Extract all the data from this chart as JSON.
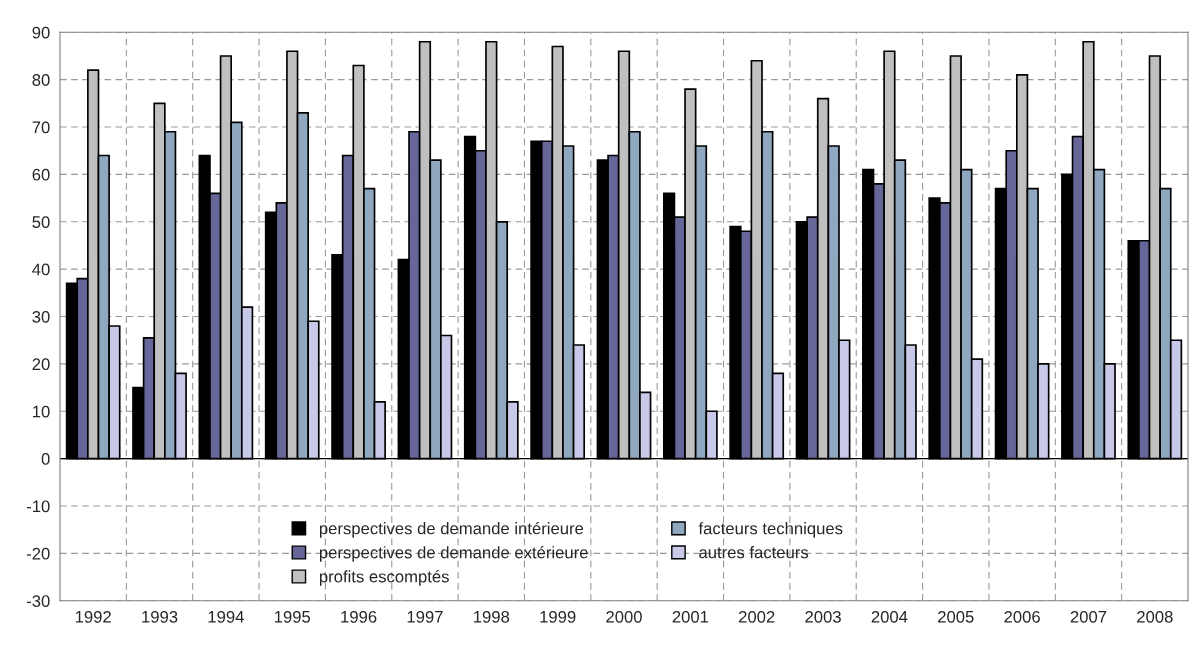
{
  "chart_data": {
    "type": "bar",
    "categories": [
      "1992",
      "1993",
      "1994",
      "1995",
      "1996",
      "1997",
      "1998",
      "1999",
      "2000",
      "2001",
      "2002",
      "2003",
      "2004",
      "2005",
      "2006",
      "2007",
      "2008"
    ],
    "series": [
      {
        "name": "perspectives de demande intérieure",
        "color": "#000000",
        "values": [
          37,
          15,
          64,
          52,
          43,
          42,
          68,
          67,
          63,
          56,
          49,
          50,
          61,
          55,
          57,
          60,
          46
        ]
      },
      {
        "name": "perspectives de demande extérieure",
        "color": "#666699",
        "values": [
          38,
          25.5,
          56,
          54,
          64,
          69,
          65,
          67,
          64,
          51,
          48,
          51,
          58,
          54,
          65,
          68,
          46
        ]
      },
      {
        "name": "profits escomptés",
        "color": "#c0c0c0",
        "values": [
          82,
          75,
          85,
          86,
          83,
          88,
          88,
          87,
          86,
          78,
          84,
          76,
          86,
          85,
          81,
          88,
          85
        ]
      },
      {
        "name": "facteurs techniques",
        "color": "#8fa8c0",
        "values": [
          64,
          69,
          71,
          73,
          57,
          63,
          50,
          66,
          69,
          66,
          69,
          66,
          63,
          61,
          57,
          61,
          57
        ]
      },
      {
        "name": "autres facteurs",
        "color": "#c8c8e8",
        "values": [
          28,
          18,
          32,
          29,
          12,
          26,
          12,
          24,
          14,
          10,
          18,
          25,
          24,
          21,
          20,
          20,
          25
        ]
      }
    ],
    "ylim": [
      -30,
      90
    ],
    "yticks": [
      -30,
      -20,
      -10,
      0,
      10,
      20,
      30,
      40,
      50,
      60,
      70,
      80,
      90
    ],
    "grid": true,
    "legend": "bottom"
  }
}
